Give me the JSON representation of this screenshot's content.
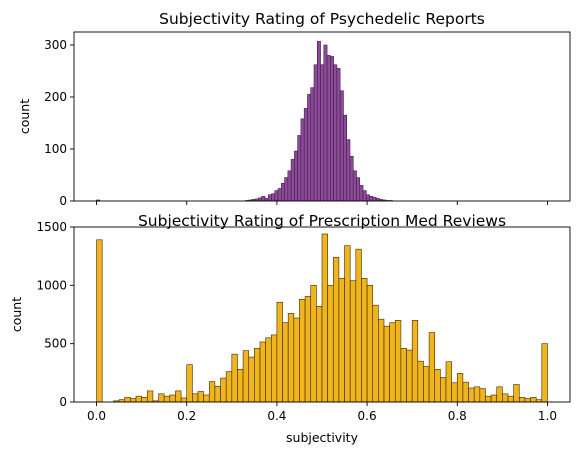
{
  "chart_data": [
    {
      "type": "bar",
      "title": "Subjectivity Rating of Psychedelic Reports",
      "xlabel": "",
      "ylabel": "count",
      "xlim": [
        -0.05,
        1.05
      ],
      "ylim": [
        0,
        325
      ],
      "yticks": [
        0,
        100,
        200,
        300
      ],
      "ytick_labels": [
        "0",
        "100",
        "200",
        "300"
      ],
      "xticks": [
        0.0,
        0.2,
        0.4,
        0.6,
        0.8,
        1.0
      ],
      "xtick_labels": [],
      "grid": false,
      "fill_color": "#8e4a9a",
      "edge_color": "#3d1f45",
      "bin_width": 0.00725,
      "x": [
        0.0,
        0.33,
        0.3373,
        0.3445,
        0.3518,
        0.359,
        0.3663,
        0.3735,
        0.3808,
        0.388,
        0.3953,
        0.4025,
        0.4098,
        0.417,
        0.4243,
        0.4315,
        0.4388,
        0.446,
        0.4533,
        0.4605,
        0.4678,
        0.475,
        0.4823,
        0.4895,
        0.4968,
        0.504,
        0.5113,
        0.5185,
        0.5258,
        0.533,
        0.5403,
        0.5475,
        0.5548,
        0.562,
        0.5693,
        0.5765,
        0.5838,
        0.591,
        0.5983,
        0.6055,
        0.6128,
        0.62,
        0.6273,
        0.6345,
        0.6418,
        0.649
      ],
      "values": [
        2,
        1,
        2,
        3,
        4,
        6,
        9,
        5,
        12,
        14,
        20,
        24,
        34,
        45,
        58,
        80,
        96,
        126,
        158,
        178,
        205,
        218,
        262,
        307,
        262,
        300,
        280,
        278,
        262,
        255,
        212,
        165,
        118,
        86,
        58,
        45,
        30,
        20,
        12,
        9,
        7,
        5,
        3,
        2,
        1,
        1
      ]
    },
    {
      "type": "bar",
      "title": "Subjectivity Rating of Prescription Med Reviews",
      "xlabel": "subjectivity",
      "ylabel": "count",
      "xlim": [
        -0.05,
        1.05
      ],
      "ylim": [
        0,
        1500
      ],
      "yticks": [
        0,
        500,
        1000,
        1500
      ],
      "ytick_labels": [
        "0",
        "500",
        "1000",
        "1500"
      ],
      "xticks": [
        0.0,
        0.2,
        0.4,
        0.6,
        0.8,
        1.0
      ],
      "xtick_labels": [
        "0.0",
        "0.2",
        "0.4",
        "0.6",
        "0.8",
        "1.0"
      ],
      "grid": false,
      "fill_color": "#f0b41e",
      "edge_color": "#3a2a00",
      "bin_width": 0.0125,
      "x": [
        0.0,
        0.0125,
        0.025,
        0.0375,
        0.05,
        0.0625,
        0.075,
        0.0875,
        0.1,
        0.1125,
        0.125,
        0.1375,
        0.15,
        0.1625,
        0.175,
        0.1875,
        0.2,
        0.2125,
        0.225,
        0.2375,
        0.25,
        0.2625,
        0.275,
        0.2875,
        0.3,
        0.3125,
        0.325,
        0.3375,
        0.35,
        0.3625,
        0.375,
        0.3875,
        0.4,
        0.4125,
        0.425,
        0.4375,
        0.45,
        0.4625,
        0.475,
        0.4875,
        0.5,
        0.5125,
        0.525,
        0.5375,
        0.55,
        0.5625,
        0.575,
        0.5875,
        0.6,
        0.6125,
        0.625,
        0.6375,
        0.65,
        0.6625,
        0.675,
        0.6875,
        0.7,
        0.7125,
        0.725,
        0.7375,
        0.75,
        0.7625,
        0.775,
        0.7875,
        0.8,
        0.8125,
        0.825,
        0.8375,
        0.85,
        0.8625,
        0.875,
        0.8875,
        0.9,
        0.9125,
        0.925,
        0.9375,
        0.95,
        0.9625,
        0.975,
        0.9875
      ],
      "values": [
        1390,
        0,
        0,
        10,
        20,
        40,
        30,
        50,
        40,
        95,
        10,
        70,
        50,
        60,
        95,
        35,
        320,
        70,
        90,
        60,
        175,
        135,
        205,
        260,
        410,
        280,
        440,
        385,
        460,
        515,
        550,
        575,
        855,
        680,
        760,
        720,
        880,
        905,
        1000,
        820,
        1440,
        1000,
        1240,
        1060,
        1340,
        1040,
        1310,
        1060,
        1000,
        830,
        710,
        650,
        680,
        700,
        460,
        445,
        700,
        350,
        305,
        595,
        280,
        210,
        345,
        165,
        245,
        170,
        120,
        130,
        115,
        50,
        60,
        130,
        70,
        50,
        150,
        40,
        30,
        40,
        20,
        500
      ]
    }
  ]
}
